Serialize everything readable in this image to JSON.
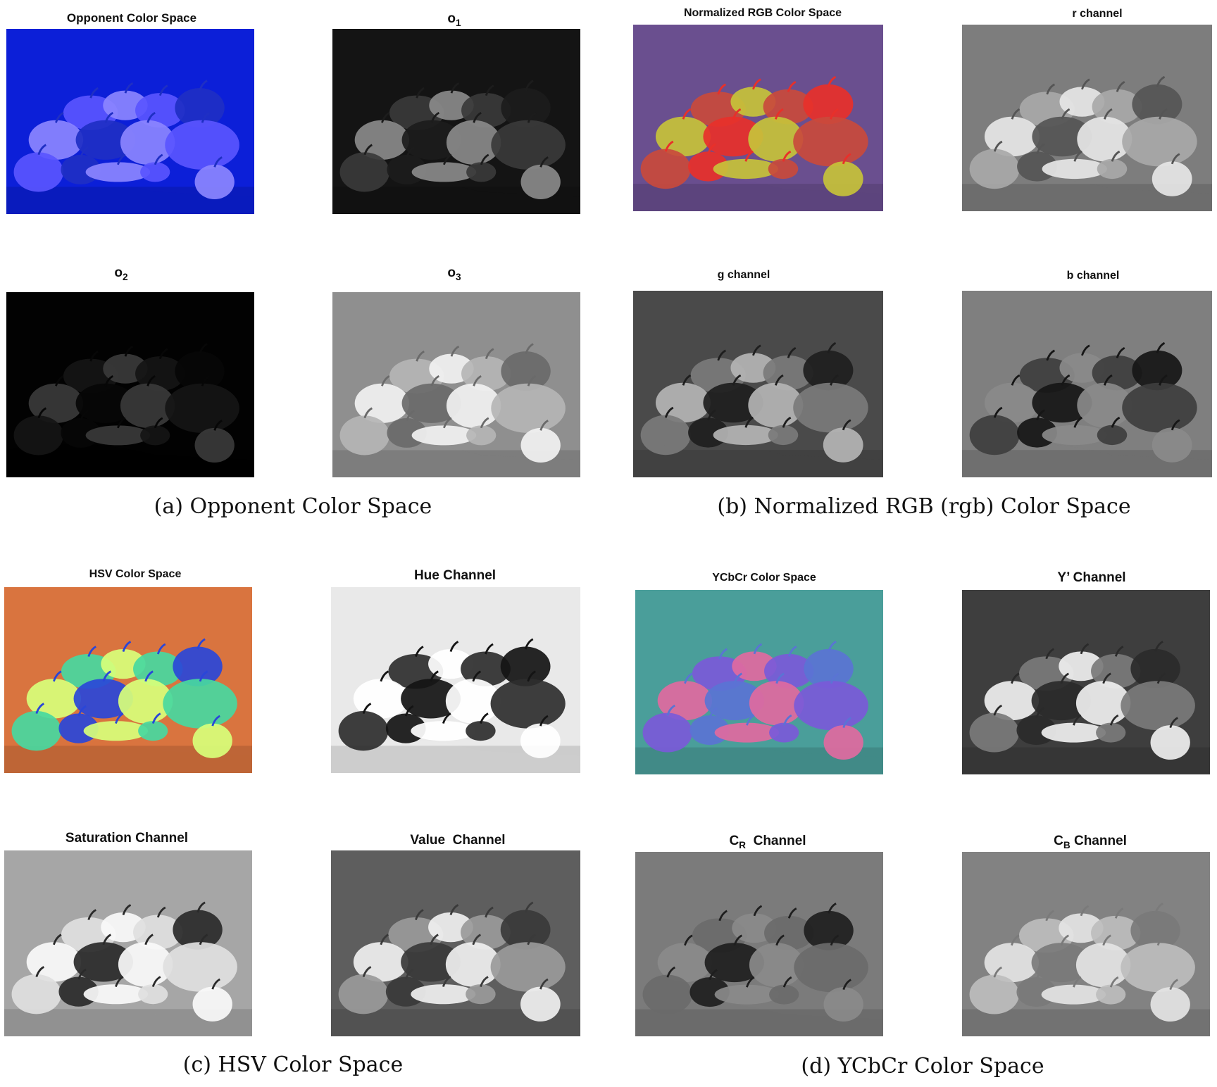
{
  "figure": {
    "subfigures": [
      {
        "caption": "(a) Opponent Color Space",
        "panels": [
          {
            "title": "Opponent Color Space",
            "render": "opponent",
            "colors": {
              "bg": "#0c1fd8",
              "mid": "#5a55ff",
              "hi": "#8c86ff",
              "lo": "#1f2fc4"
            }
          },
          {
            "title_main": "o",
            "title_sub": "1",
            "render": "o1",
            "colors": {
              "bg": "#141414",
              "mid": "#3a3a3a",
              "hi": "#8a8a8a",
              "lo": "#1c1c1c"
            }
          },
          {
            "title_main": "o",
            "title_sub": "2",
            "render": "o2",
            "colors": {
              "bg": "#020202",
              "mid": "#151515",
              "hi": "#3a3a3a",
              "lo": "#070707"
            }
          },
          {
            "title_main": "o",
            "title_sub": "3",
            "render": "o3",
            "colors": {
              "bg": "#8f8f8f",
              "mid": "#b5b5b5",
              "hi": "#f2f2f2",
              "lo": "#6a6a6a"
            }
          }
        ]
      },
      {
        "caption": "(b) Normalized RGB (rgb) Color Space",
        "panels": [
          {
            "title": "Normalized RGB Color Space",
            "render": "rgb",
            "colors": {
              "bg": "#6a4f8f",
              "mid": "#c94a3c",
              "hi": "#c7c23a",
              "lo": "#e8302a"
            }
          },
          {
            "title": "r channel",
            "render": "r",
            "colors": {
              "bg": "#7d7d7d",
              "mid": "#a8a8a8",
              "hi": "#e6e6e6",
              "lo": "#555555"
            }
          },
          {
            "title": "g channel",
            "render": "g",
            "colors": {
              "bg": "#4a4a4a",
              "mid": "#7a7a7a",
              "hi": "#b4b4b4",
              "lo": "#1e1e1e"
            }
          },
          {
            "title": "b channel",
            "render": "b",
            "colors": {
              "bg": "#7f7f7f",
              "mid": "#3e3e3e",
              "hi": "#8a8a8a",
              "lo": "#161616"
            }
          }
        ]
      },
      {
        "caption": "(c) HSV Color Space",
        "panels": [
          {
            "title": "HSV Color Space",
            "render": "hsv",
            "colors": {
              "bg": "#d9743f",
              "mid": "#48d8a0",
              "hi": "#d8ff7a",
              "lo": "#2a46d8"
            }
          },
          {
            "title": "Hue Channel",
            "render": "hue",
            "colors": {
              "bg": "#e9e9e9",
              "mid": "#2e2e2e",
              "hi": "#ffffff",
              "lo": "#141414"
            }
          },
          {
            "title": "Saturation Channel",
            "render": "sat",
            "colors": {
              "bg": "#a6a6a6",
              "mid": "#e0e0e0",
              "hi": "#fafafa",
              "lo": "#2a2a2a"
            }
          },
          {
            "title": "Value  Channel",
            "render": "val",
            "colors": {
              "bg": "#5e5e5e",
              "mid": "#9a9a9a",
              "hi": "#f0f0f0",
              "lo": "#3a3a3a"
            }
          }
        ]
      },
      {
        "caption": "(d) YCbCr Color Space",
        "panels": [
          {
            "title": "YCbCr Color Space",
            "render": "ycbcr",
            "colors": {
              "bg": "#4a9e9a",
              "mid": "#7a5ad8",
              "hi": "#e06aa0",
              "lo": "#5a74d4"
            }
          },
          {
            "title": "Y’ Channel",
            "render": "y",
            "colors": {
              "bg": "#3e3e3e",
              "mid": "#7a7a7a",
              "hi": "#efefef",
              "lo": "#2a2a2a"
            }
          },
          {
            "title_main": "C",
            "title_sub": "R",
            "title_tail": "  Channel",
            "render": "cr",
            "colors": {
              "bg": "#7b7b7b",
              "mid": "#6a6a6a",
              "hi": "#8a8a8a",
              "lo": "#1e1e1e"
            }
          },
          {
            "title_main": "C",
            "title_sub": "B",
            "title_tail": " Channel",
            "render": "cb",
            "colors": {
              "bg": "#828282",
              "mid": "#bdbdbd",
              "hi": "#e4e4e4",
              "lo": "#7a7a7a"
            }
          }
        ]
      }
    ]
  }
}
